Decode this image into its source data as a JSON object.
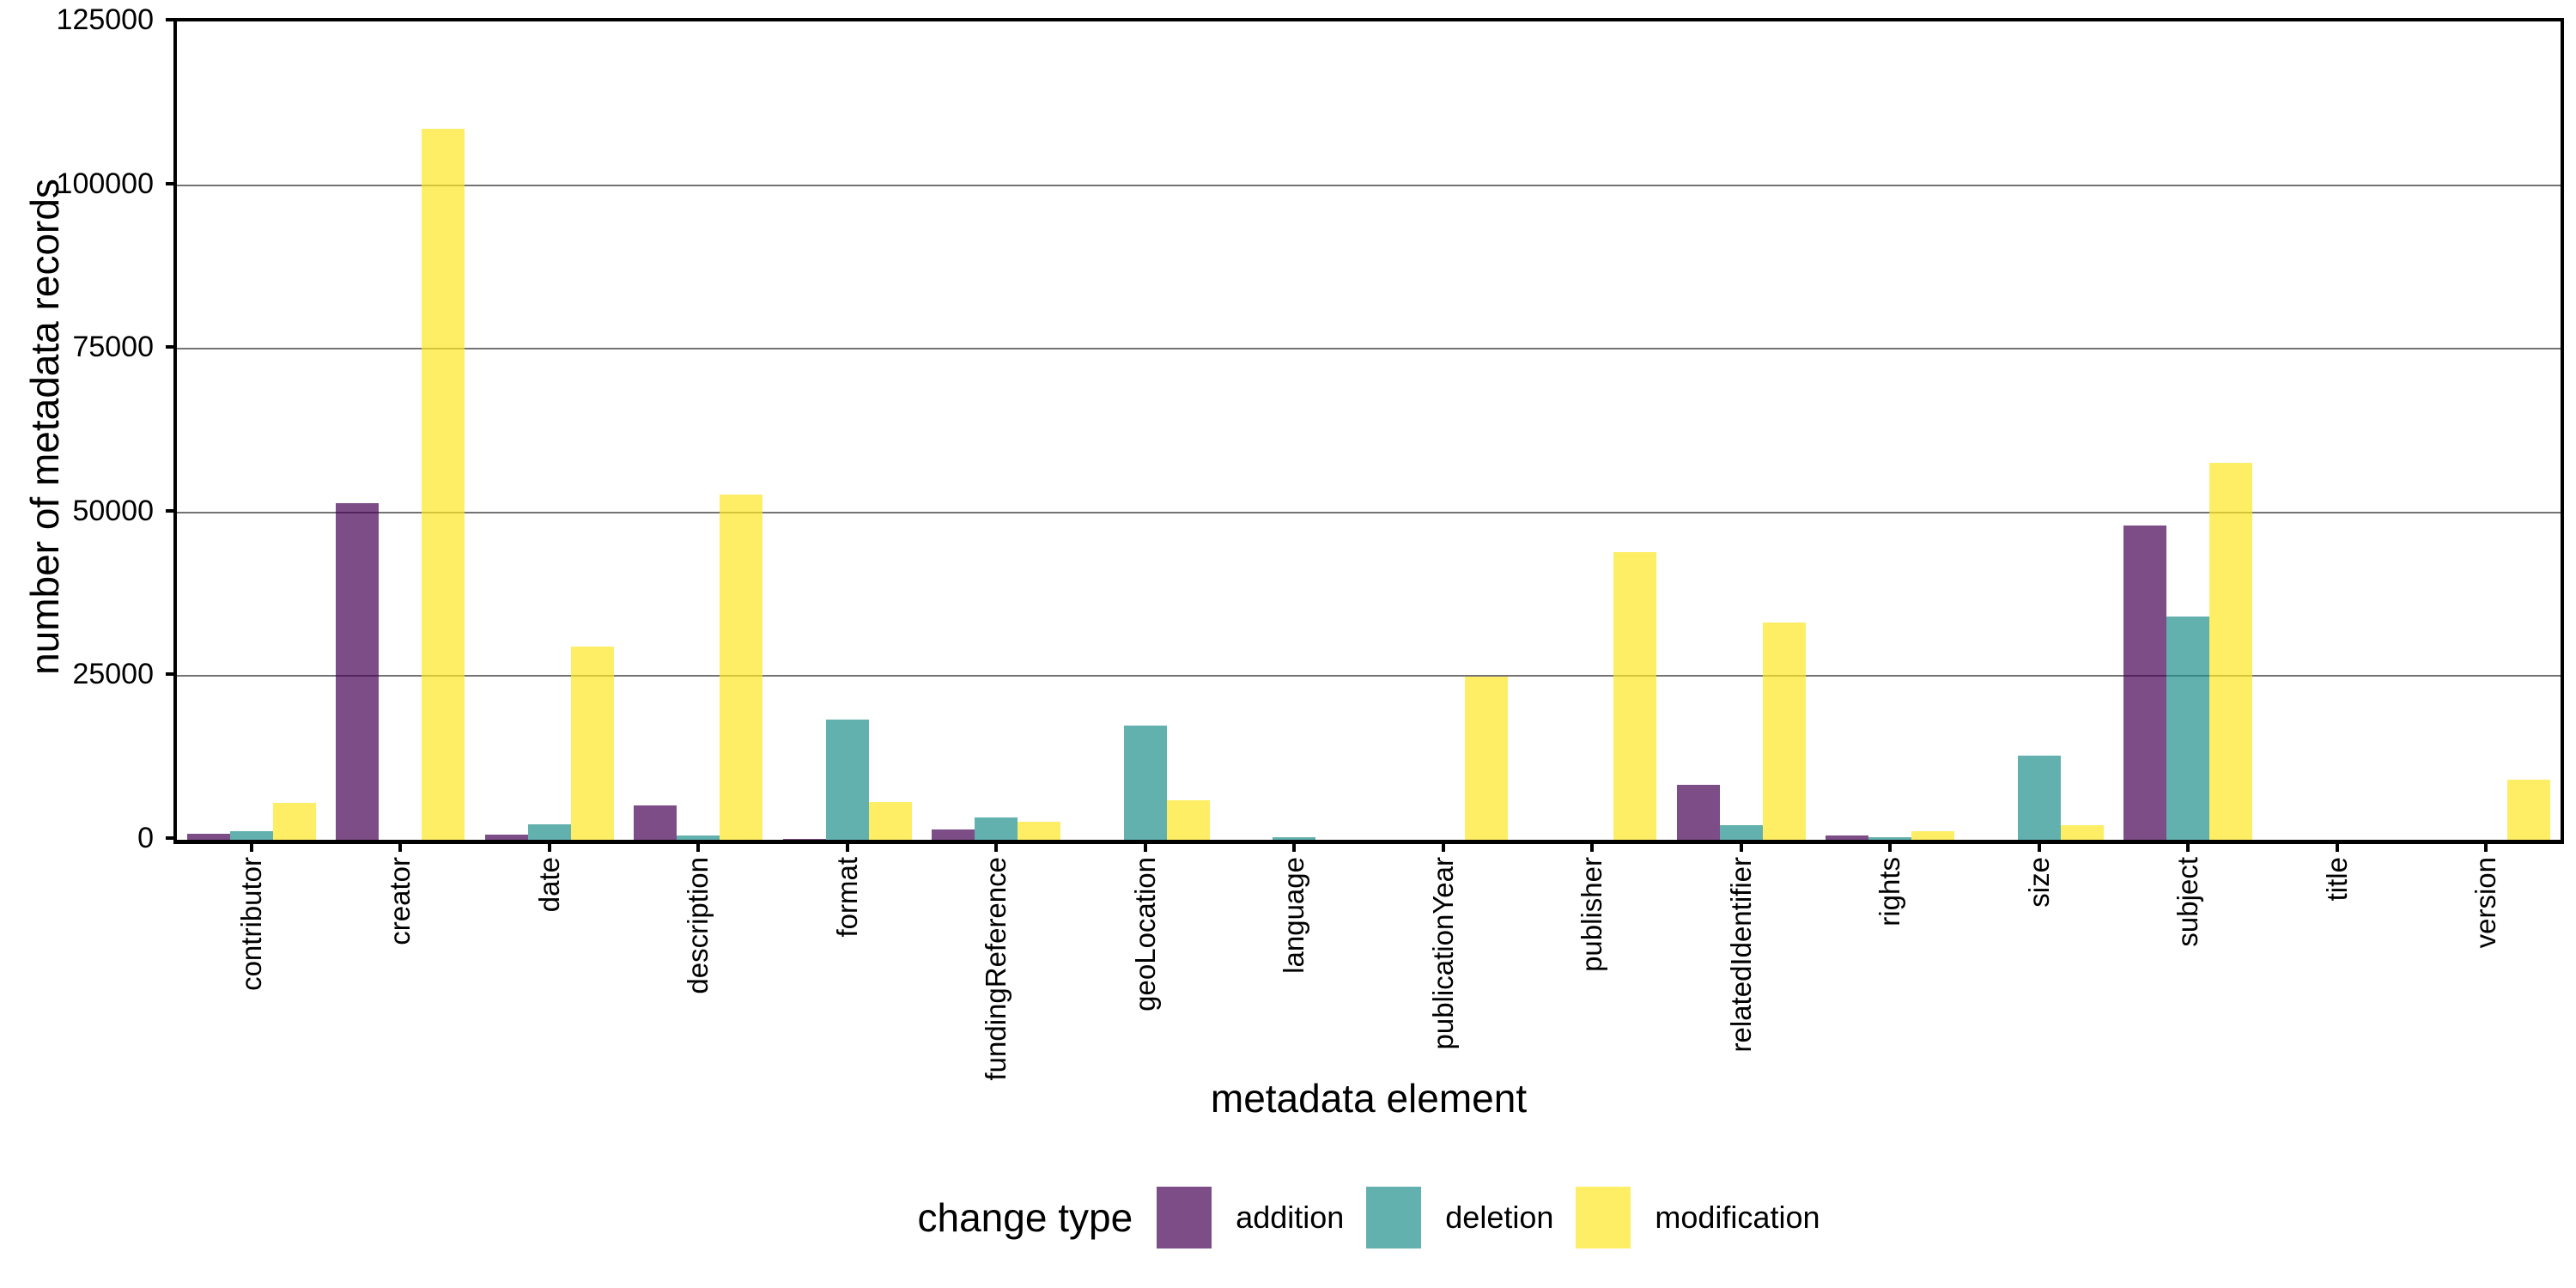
{
  "y_axis": {
    "title": "number of metadata records",
    "tick_values": [
      0,
      25000,
      50000,
      75000,
      100000,
      125000
    ],
    "tick_labels": [
      "0",
      "25000",
      "50000",
      "75000",
      "100000",
      "125000"
    ]
  },
  "x_axis": {
    "title": "metadata element"
  },
  "legend": {
    "title": "change type"
  },
  "colors": {
    "addition": "rgba(68,1,84,0.7)",
    "deletion": "rgba(33,144,140,0.7)",
    "modification": "rgba(253,231,37,0.7)",
    "gridline": "#737373",
    "axis": "#000000"
  },
  "chart_data": {
    "type": "bar",
    "title": "",
    "xlabel": "metadata element",
    "ylabel": "number of metadata records",
    "ylim": [
      0,
      125000
    ],
    "grid": "horizontal",
    "legend_position": "bottom",
    "legend_title": "change type",
    "categories": [
      "contributor",
      "creator",
      "date",
      "description",
      "format",
      "fundingReference",
      "geoLocation",
      "language",
      "publicationYear",
      "publisher",
      "relatedIdentifier",
      "rights",
      "size",
      "subject",
      "title",
      "version"
    ],
    "series": [
      {
        "name": "addition",
        "color": "rgba(68,1,84,0.7)",
        "values": [
          900,
          51400,
          800,
          5200,
          200,
          1600,
          0,
          0,
          0,
          0,
          8400,
          600,
          0,
          48000,
          0,
          0
        ]
      },
      {
        "name": "deletion",
        "color": "rgba(33,144,140,0.7)",
        "values": [
          1300,
          0,
          2400,
          700,
          18400,
          3400,
          17400,
          400,
          0,
          0,
          2200,
          400,
          12800,
          34100,
          0,
          0
        ]
      },
      {
        "name": "modification",
        "color": "rgba(253,231,37,0.7)",
        "values": [
          5600,
          108600,
          29500,
          52700,
          5800,
          2700,
          6100,
          0,
          24900,
          44000,
          33200,
          1300,
          2200,
          57600,
          0,
          9200
        ]
      }
    ]
  }
}
